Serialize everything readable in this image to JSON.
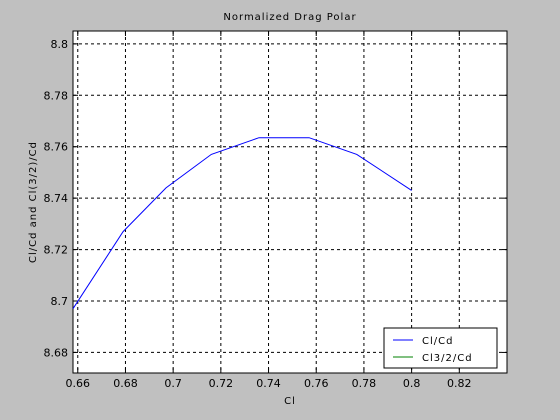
{
  "chart_data": {
    "type": "line",
    "title": "Normalized Drag Polar",
    "xlabel": "Cl",
    "ylabel": "Cl/Cd and Cl(3/2)/Cd",
    "xlim": [
      0.658,
      0.84
    ],
    "ylim": [
      8.672,
      8.805
    ],
    "xticks": [
      0.66,
      0.68,
      0.7,
      0.72,
      0.74,
      0.76,
      0.78,
      0.8,
      0.82
    ],
    "xtick_labels": [
      "0.66",
      "0.68",
      "0.7",
      "0.72",
      "0.74",
      "0.76",
      "0.78",
      "0.8",
      "0.82"
    ],
    "yticks": [
      8.68,
      8.7,
      8.72,
      8.74,
      8.76,
      8.78,
      8.8
    ],
    "ytick_labels": [
      "8.68",
      "8.7",
      "8.72",
      "8.74",
      "8.76",
      "8.78",
      "8.8"
    ],
    "grid": true,
    "legend_position": "bottom-right",
    "series": [
      {
        "name": "Cl/Cd",
        "color": "#0000ff",
        "x": [
          0.658,
          0.679,
          0.697,
          0.716,
          0.736,
          0.757,
          0.777,
          0.8
        ],
        "y": [
          8.697,
          8.727,
          8.744,
          8.757,
          8.7635,
          8.7635,
          8.757,
          8.743
        ]
      },
      {
        "name": "Cl3/2/Cd",
        "color": "#008000",
        "x": [],
        "y": []
      }
    ]
  }
}
